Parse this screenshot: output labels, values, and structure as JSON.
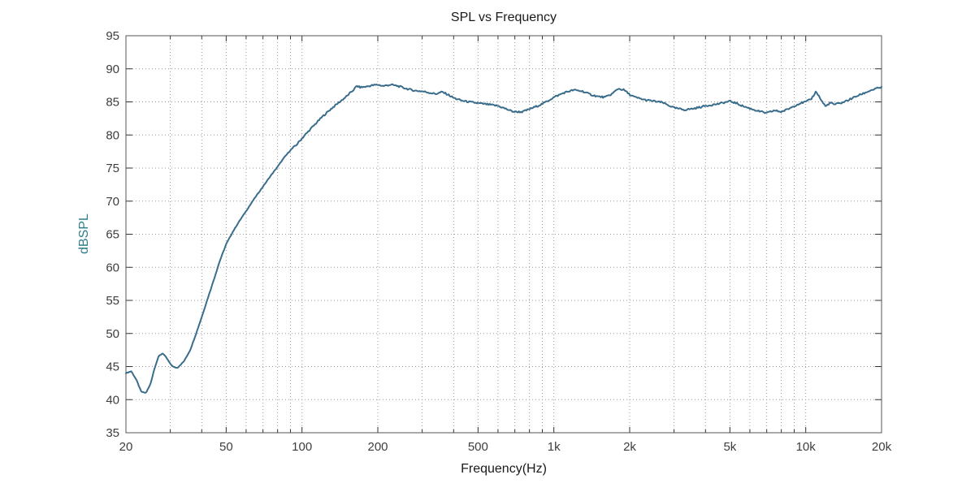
{
  "chart_data": {
    "type": "line",
    "title": "SPL vs Frequency",
    "xlabel": "Frequency(Hz)",
    "ylabel": "dBSPL",
    "x_scale": "log",
    "xlim": [
      20,
      20000
    ],
    "ylim": [
      35,
      95
    ],
    "grid": "dotted",
    "legend": "none",
    "line_color": "#3a6d8c",
    "ylabel_color": "#2e7d8a",
    "grid_color": "#999999",
    "axis_color": "#555555",
    "x_ticks": [
      {
        "v": 20,
        "label": "20"
      },
      {
        "v": 50,
        "label": "50"
      },
      {
        "v": 100,
        "label": "100"
      },
      {
        "v": 200,
        "label": "200"
      },
      {
        "v": 500,
        "label": "500"
      },
      {
        "v": 1000,
        "label": "1k"
      },
      {
        "v": 2000,
        "label": "2k"
      },
      {
        "v": 5000,
        "label": "5k"
      },
      {
        "v": 10000,
        "label": "10k"
      },
      {
        "v": 20000,
        "label": "20k"
      }
    ],
    "y_ticks": [
      35,
      40,
      45,
      50,
      55,
      60,
      65,
      70,
      75,
      80,
      85,
      90,
      95
    ],
    "series": [
      {
        "name": "SPL",
        "points": [
          [
            20,
            44.0
          ],
          [
            21,
            44.3
          ],
          [
            22,
            43.0
          ],
          [
            23,
            41.2
          ],
          [
            24,
            41.0
          ],
          [
            25,
            42.3
          ],
          [
            26,
            44.8
          ],
          [
            27,
            46.6
          ],
          [
            28,
            47.0
          ],
          [
            29,
            46.3
          ],
          [
            30,
            45.4
          ],
          [
            31,
            44.9
          ],
          [
            32,
            44.8
          ],
          [
            34,
            45.8
          ],
          [
            36,
            47.5
          ],
          [
            38,
            50.0
          ],
          [
            40,
            52.5
          ],
          [
            42,
            55.0
          ],
          [
            45,
            58.5
          ],
          [
            47,
            60.8
          ],
          [
            50,
            63.5
          ],
          [
            53,
            65.3
          ],
          [
            56,
            66.8
          ],
          [
            60,
            68.5
          ],
          [
            65,
            70.5
          ],
          [
            70,
            72.2
          ],
          [
            75,
            73.8
          ],
          [
            80,
            75.2
          ],
          [
            85,
            76.6
          ],
          [
            90,
            77.7
          ],
          [
            95,
            78.5
          ],
          [
            100,
            79.5
          ],
          [
            110,
            81.2
          ],
          [
            120,
            82.7
          ],
          [
            130,
            83.9
          ],
          [
            140,
            84.9
          ],
          [
            150,
            85.8
          ],
          [
            160,
            86.8
          ],
          [
            165,
            87.4
          ],
          [
            170,
            87.2
          ],
          [
            180,
            87.3
          ],
          [
            190,
            87.5
          ],
          [
            200,
            87.6
          ],
          [
            210,
            87.4
          ],
          [
            225,
            87.6
          ],
          [
            240,
            87.4
          ],
          [
            260,
            87.0
          ],
          [
            280,
            86.7
          ],
          [
            300,
            86.6
          ],
          [
            320,
            86.4
          ],
          [
            340,
            86.2
          ],
          [
            360,
            86.5
          ],
          [
            380,
            86.1
          ],
          [
            400,
            85.6
          ],
          [
            430,
            85.2
          ],
          [
            460,
            85.0
          ],
          [
            500,
            84.8
          ],
          [
            550,
            84.6
          ],
          [
            600,
            84.4
          ],
          [
            650,
            83.9
          ],
          [
            680,
            83.6
          ],
          [
            700,
            83.5
          ],
          [
            750,
            83.5
          ],
          [
            800,
            83.9
          ],
          [
            850,
            84.3
          ],
          [
            900,
            84.7
          ],
          [
            950,
            85.2
          ],
          [
            1000,
            85.7
          ],
          [
            1100,
            86.4
          ],
          [
            1200,
            86.8
          ],
          [
            1300,
            86.6
          ],
          [
            1400,
            86.1
          ],
          [
            1500,
            85.8
          ],
          [
            1600,
            85.7
          ],
          [
            1700,
            86.2
          ],
          [
            1800,
            87.0
          ],
          [
            1900,
            86.8
          ],
          [
            2000,
            86.1
          ],
          [
            2100,
            85.7
          ],
          [
            2300,
            85.3
          ],
          [
            2500,
            85.1
          ],
          [
            2700,
            84.9
          ],
          [
            3000,
            84.1
          ],
          [
            3300,
            83.8
          ],
          [
            3600,
            84.0
          ],
          [
            4000,
            84.4
          ],
          [
            4500,
            84.7
          ],
          [
            5000,
            85.1
          ],
          [
            5300,
            84.8
          ],
          [
            5600,
            84.4
          ],
          [
            6000,
            84.0
          ],
          [
            6500,
            83.6
          ],
          [
            7000,
            83.3
          ],
          [
            7500,
            83.7
          ],
          [
            8000,
            83.5
          ],
          [
            8500,
            83.9
          ],
          [
            9000,
            84.4
          ],
          [
            9500,
            84.8
          ],
          [
            10000,
            85.0
          ],
          [
            10500,
            85.4
          ],
          [
            11000,
            86.6
          ],
          [
            11500,
            85.3
          ],
          [
            12000,
            84.3
          ],
          [
            12500,
            84.9
          ],
          [
            13000,
            84.6
          ],
          [
            14000,
            84.9
          ],
          [
            15000,
            85.4
          ],
          [
            16000,
            85.9
          ],
          [
            17000,
            86.3
          ],
          [
            18000,
            86.7
          ],
          [
            19000,
            87.0
          ],
          [
            20000,
            87.2
          ]
        ]
      }
    ]
  },
  "layout_note": ""
}
